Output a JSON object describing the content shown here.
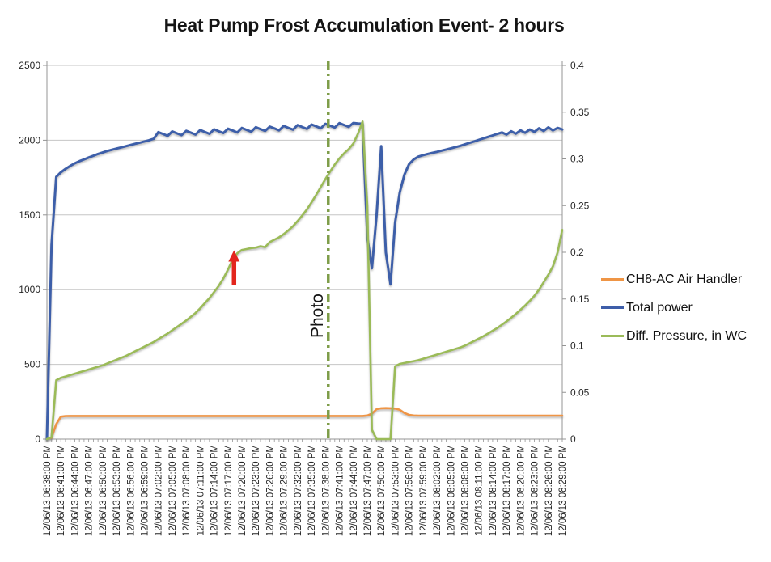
{
  "title": "Heat Pump Frost Accumulation Event- 2 hours",
  "legend": [
    {
      "label": "CH8-AC Air Handler",
      "color": "#EF9545"
    },
    {
      "label": "Total power",
      "color": "#3E5EA9"
    },
    {
      "label": "Diff. Pressure, in WC",
      "color": "#9BBB59"
    }
  ],
  "colors": {
    "gridline": "#C6C6C6",
    "axis": "#949494",
    "tick_text": "#262626",
    "threshold_red": "#FA1414",
    "arrow_red": "#E3261D",
    "photo_line": "#7E9D49"
  },
  "chart_data": {
    "type": "line",
    "title": "Heat Pump Frost Accumulation Event- 2 hours",
    "x_minutes_total": 111,
    "x_label_interval_minutes": 3,
    "x_tick_labels": [
      "12/06/13 06:38:00 PM",
      "12/06/13 06:41:00 PM",
      "12/06/13 06:44:00 PM",
      "12/06/13 06:47:00 PM",
      "12/06/13 06:50:00 PM",
      "12/06/13 06:53:00 PM",
      "12/06/13 06:56:00 PM",
      "12/06/13 06:59:00 PM",
      "12/06/13 07:02:00 PM",
      "12/06/13 07:05:00 PM",
      "12/06/13 07:08:00 PM",
      "12/06/13 07:11:00 PM",
      "12/06/13 07:14:00 PM",
      "12/06/13 07:17:00 PM",
      "12/06/13 07:20:00 PM",
      "12/06/13 07:23:00 PM",
      "12/06/13 07:26:00 PM",
      "12/06/13 07:29:00 PM",
      "12/06/13 07:32:00 PM",
      "12/06/13 07:35:00 PM",
      "12/06/13 07:38:00 PM",
      "12/06/13 07:41:00 PM",
      "12/06/13 07:44:00 PM",
      "12/06/13 07:47:00 PM",
      "12/06/13 07:50:00 PM",
      "12/06/13 07:53:00 PM",
      "12/06/13 07:56:00 PM",
      "12/06/13 07:59:00 PM",
      "12/06/13 08:02:00 PM",
      "12/06/13 08:05:00 PM",
      "12/06/13 08:08:00 PM",
      "12/06/13 08:11:00 PM",
      "12/06/13 08:14:00 PM",
      "12/06/13 08:17:00 PM",
      "12/06/13 08:20:00 PM",
      "12/06/13 08:23:00 PM",
      "12/06/13 08:26:00 PM",
      "12/06/13 08:29:00 PM"
    ],
    "left_axis": {
      "min": 0,
      "max": 2500,
      "tick_labels": [
        "0",
        "500",
        "1000",
        "1500",
        "2000",
        "2500"
      ],
      "tick_values": [
        0,
        500,
        1000,
        1500,
        2000,
        2500
      ]
    },
    "right_axis": {
      "min": 0,
      "max": 0.4,
      "tick_labels": [
        "0",
        "0.05",
        "0.1",
        "0.15",
        "0.2",
        "0.25",
        "0.3",
        "0.35",
        "0.4"
      ],
      "tick_values": [
        0,
        0.05,
        0.1,
        0.15,
        0.2,
        0.25,
        0.3,
        0.35,
        0.4
      ]
    },
    "grid": "horizontal-only",
    "legend_position": "right",
    "series": [
      {
        "name": "CH8-AC Air Handler",
        "axis": "left",
        "color": "#EF9545",
        "values": [
          0,
          10,
          100,
          150,
          154,
          155,
          155,
          155,
          155,
          155,
          155,
          155,
          155,
          155,
          155,
          155,
          155,
          155,
          155,
          155,
          155,
          155,
          155,
          155,
          155,
          155,
          155,
          155,
          155,
          155,
          155,
          155,
          155,
          155,
          155,
          155,
          155,
          155,
          155,
          155,
          155,
          155,
          155,
          155,
          155,
          155,
          155,
          155,
          155,
          155,
          155,
          155,
          155,
          155,
          155,
          155,
          155,
          155,
          155,
          155,
          155,
          155,
          155,
          155,
          155,
          155,
          155,
          155,
          155,
          158,
          170,
          200,
          206,
          207,
          206,
          204,
          196,
          175,
          162,
          158,
          157,
          157,
          157,
          157,
          157,
          157,
          157,
          157,
          157,
          157,
          157,
          157,
          157,
          157,
          157,
          157,
          157,
          157,
          157,
          157,
          157,
          157,
          157,
          157,
          157,
          157,
          157,
          157,
          157,
          157,
          157,
          157
        ]
      },
      {
        "name": "Total power",
        "axis": "left",
        "color": "#3E5EA9",
        "values": [
          0,
          1300,
          1755,
          1785,
          1808,
          1828,
          1845,
          1860,
          1872,
          1884,
          1896,
          1908,
          1918,
          1928,
          1936,
          1944,
          1952,
          1960,
          1968,
          1976,
          1984,
          1992,
          2000,
          2010,
          2054,
          2042,
          2029,
          2059,
          2046,
          2034,
          2063,
          2051,
          2038,
          2068,
          2056,
          2043,
          2073,
          2060,
          2048,
          2077,
          2065,
          2052,
          2082,
          2069,
          2057,
          2087,
          2074,
          2062,
          2091,
          2079,
          2066,
          2096,
          2083,
          2071,
          2101,
          2088,
          2076,
          2105,
          2093,
          2080,
          2110,
          2097,
          2085,
          2114,
          2102,
          2090,
          2115,
          2112,
          2110,
          1350,
          1143,
          1500,
          1960,
          1250,
          1035,
          1450,
          1650,
          1770,
          1840,
          1872,
          1890,
          1900,
          1908,
          1915,
          1922,
          1930,
          1938,
          1946,
          1954,
          1962,
          1972,
          1982,
          1992,
          2002,
          2012,
          2022,
          2032,
          2042,
          2052,
          2038,
          2060,
          2044,
          2066,
          2050,
          2072,
          2056,
          2080,
          2062,
          2086,
          2066,
          2082,
          2072
        ]
      },
      {
        "name": "Diff. Pressure, in WC",
        "axis": "right",
        "color": "#9BBB59",
        "values": [
          0,
          0.002,
          0.063,
          0.0655,
          0.067,
          0.0685,
          0.07,
          0.0715,
          0.073,
          0.0745,
          0.076,
          0.0775,
          0.079,
          0.081,
          0.083,
          0.085,
          0.087,
          0.089,
          0.0915,
          0.094,
          0.0965,
          0.099,
          0.1015,
          0.104,
          0.107,
          0.11,
          0.113,
          0.1165,
          0.12,
          0.1235,
          0.127,
          0.131,
          0.135,
          0.14,
          0.1455,
          0.151,
          0.1575,
          0.164,
          0.172,
          0.1815,
          0.192,
          0.199,
          0.2025,
          0.2035,
          0.2045,
          0.205,
          0.2065,
          0.2055,
          0.211,
          0.2135,
          0.216,
          0.2195,
          0.2235,
          0.228,
          0.2335,
          0.2395,
          0.246,
          0.2535,
          0.2615,
          0.27,
          0.2785,
          0.2865,
          0.294,
          0.3005,
          0.306,
          0.3105,
          0.3165,
          0.327,
          0.34,
          0.25,
          0.01,
          0,
          0,
          0,
          0,
          0.078,
          0.0805,
          0.0815,
          0.0825,
          0.0835,
          0.0845,
          0.086,
          0.0875,
          0.089,
          0.0905,
          0.092,
          0.0935,
          0.095,
          0.0965,
          0.098,
          0.1,
          0.1025,
          0.105,
          0.1075,
          0.11,
          0.113,
          0.116,
          0.119,
          0.1225,
          0.126,
          0.13,
          0.134,
          0.1385,
          0.143,
          0.148,
          0.1535,
          0.16,
          0.168,
          0.176,
          0.185,
          0.2,
          0.224
        ]
      }
    ],
    "annotations": {
      "threshold_line": {
        "axis": "right",
        "value": 0.203,
        "style": "dashed",
        "color": "#FA1414"
      },
      "photo_line": {
        "minute": 60.6,
        "label": "Photo",
        "style": "dash-dot",
        "color": "#7E9D49"
      },
      "arrow": {
        "minute": 40.3,
        "axis": "right",
        "points_to_value": 0.203,
        "direction": "up",
        "color": "#E3261D"
      }
    }
  }
}
